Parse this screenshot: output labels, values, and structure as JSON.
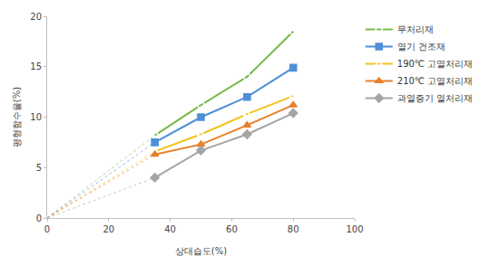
{
  "chart_data": {
    "type": "line",
    "x_label": "상대습도(%)",
    "y_label": "평형함수율(%)",
    "x": [
      0,
      35,
      50,
      65,
      80
    ],
    "series": [
      {
        "name": "무처리재",
        "color": "#77b94a",
        "marker": "circle-open",
        "values": [
          0,
          8.2,
          11.2,
          14.0,
          18.5
        ]
      },
      {
        "name": "열기 건조재",
        "color": "#4f8fd6",
        "marker": "square",
        "values": [
          0,
          7.5,
          10.0,
          12.0,
          14.9
        ]
      },
      {
        "name": "190℃ 고열처리재",
        "color": "#f2c21b",
        "marker": "triangle-up-open",
        "values": [
          0,
          6.6,
          8.3,
          10.3,
          12.1
        ]
      },
      {
        "name": "210℃ 고열처리재",
        "color": "#e87f2a",
        "marker": "triangle-up",
        "values": [
          0,
          6.3,
          7.3,
          9.2,
          11.2
        ]
      },
      {
        "name": "과열증기 열처리재",
        "color": "#a5a5a5",
        "marker": "diamond",
        "values": [
          0,
          4.0,
          6.7,
          8.3,
          10.4
        ]
      }
    ],
    "xlim": [
      0,
      100
    ],
    "xticks": [
      0,
      20,
      40,
      60,
      80,
      100
    ],
    "ylim": [
      0,
      20
    ],
    "yticks": [
      0,
      5,
      10,
      15,
      20
    ],
    "grid": false,
    "legend": "right"
  }
}
